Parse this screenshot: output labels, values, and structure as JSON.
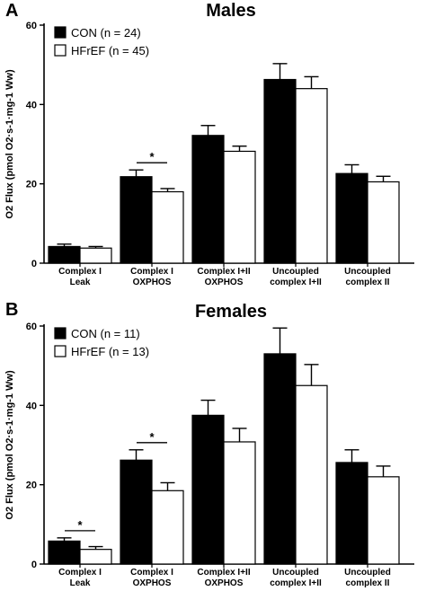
{
  "panels": [
    {
      "letter": "A",
      "title": "Males",
      "ylabel": "O2 Flux (pmol O2·s-1·mg-1 Ww)",
      "legend": [
        "CON (n = 24)",
        "HFrEF (n = 45)"
      ]
    },
    {
      "letter": "B",
      "title": "Females",
      "ylabel": "O2 Flux (pmol O2·s-1·mg-1 Ww)",
      "legend": [
        "CON (n = 11)",
        "HFrEF (n = 13)"
      ]
    }
  ],
  "colors": {
    "con": "#000000",
    "hfref": "#ffffff",
    "axis": "#000000"
  },
  "chart_data": [
    {
      "type": "bar",
      "title": "Males",
      "categories": [
        [
          "Complex I",
          "Leak"
        ],
        [
          "Complex I",
          "OXPHOS"
        ],
        [
          "Complex I+II",
          "OXPHOS"
        ],
        [
          "Uncoupled",
          "complex I+II"
        ],
        [
          "Uncoupled",
          "complex II"
        ]
      ],
      "ylabel": "O2 Flux (pmol O2·s-1·mg-1 Ww)",
      "ylim": [
        0,
        60
      ],
      "yticks": [
        0,
        20,
        40,
        60
      ],
      "series": [
        {
          "name": "CON (n = 24)",
          "values": [
            4.2,
            21.8,
            32.2,
            46.3,
            22.6
          ],
          "errors": [
            0.6,
            1.7,
            2.5,
            4.0,
            2.2
          ]
        },
        {
          "name": "HFrEF (n = 45)",
          "values": [
            3.8,
            18.0,
            28.2,
            44.0,
            20.5
          ],
          "errors": [
            0.4,
            0.8,
            1.3,
            3.0,
            1.4
          ]
        }
      ],
      "significance": [
        {
          "category": 1,
          "label": "*"
        }
      ],
      "legend_position": "top-left"
    },
    {
      "type": "bar",
      "title": "Females",
      "categories": [
        [
          "Complex I",
          "Leak"
        ],
        [
          "Complex I",
          "OXPHOS"
        ],
        [
          "Complex I+II",
          "OXPHOS"
        ],
        [
          "Uncoupled",
          "complex I+II"
        ],
        [
          "Uncoupled",
          "complex II"
        ]
      ],
      "ylabel": "O2 Flux (pmol O2·s-1·mg-1 Ww)",
      "ylim": [
        0,
        60
      ],
      "yticks": [
        0,
        20,
        40,
        60
      ],
      "series": [
        {
          "name": "CON (n = 11)",
          "values": [
            5.8,
            26.2,
            37.5,
            53.0,
            25.6
          ],
          "errors": [
            0.8,
            2.6,
            3.8,
            6.5,
            3.2
          ]
        },
        {
          "name": "HFrEF (n = 13)",
          "values": [
            3.7,
            18.5,
            30.8,
            45.0,
            22.0
          ],
          "errors": [
            0.7,
            2.0,
            3.4,
            5.3,
            2.7
          ]
        }
      ],
      "significance": [
        {
          "category": 0,
          "label": "*"
        },
        {
          "category": 1,
          "label": "*"
        }
      ],
      "legend_position": "top-left"
    }
  ]
}
